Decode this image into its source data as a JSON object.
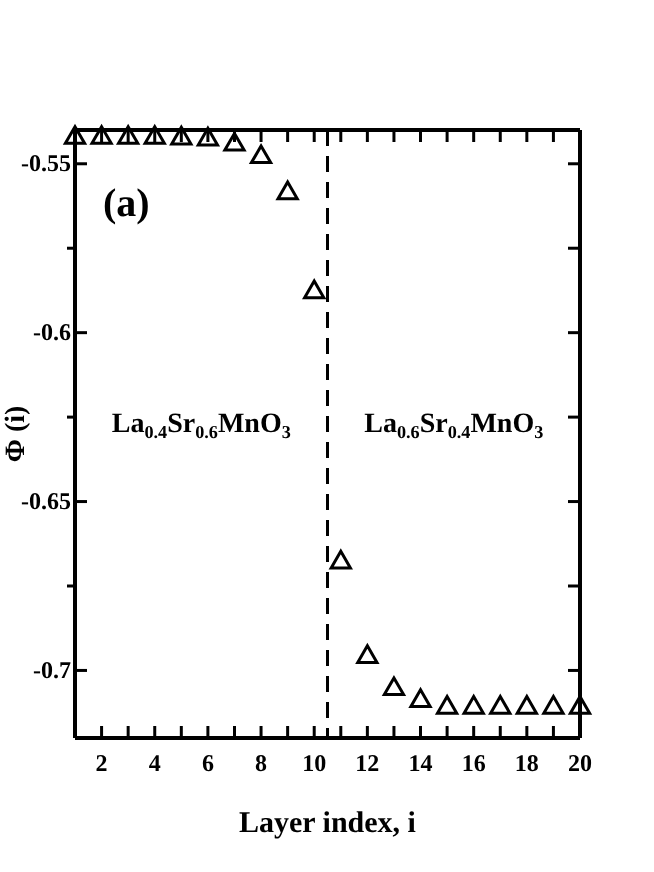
{
  "chart_data": {
    "type": "scatter",
    "xlabel": "Layer index, i",
    "ylabel": "Φ (i)",
    "x": [
      1,
      2,
      3,
      4,
      5,
      6,
      7,
      8,
      9,
      10,
      11,
      12,
      13,
      14,
      15,
      16,
      17,
      18,
      19,
      20
    ],
    "series": [
      {
        "color": "#000000",
        "values": [
          -0.5423,
          -0.5423,
          -0.5423,
          -0.5423,
          -0.5425,
          -0.5428,
          -0.5443,
          -0.548,
          -0.5587,
          -0.588,
          -0.668,
          -0.696,
          -0.7055,
          -0.709,
          -0.711,
          -0.711,
          -0.711,
          -0.711,
          -0.711,
          -0.711
        ]
      }
    ],
    "marker": "triangle",
    "xlim": [
      1,
      20
    ],
    "ylim": [
      -0.72,
      -0.54
    ],
    "xticks": [
      {
        "value": 1,
        "label": null
      },
      2,
      {
        "value": 3,
        "label": null
      },
      4,
      {
        "value": 5,
        "label": null
      },
      6,
      {
        "value": 7,
        "label": null
      },
      8,
      {
        "value": 9,
        "label": null
      },
      10,
      {
        "value": 11,
        "label": null
      },
      12,
      {
        "value": 13,
        "label": null
      },
      14,
      {
        "value": 15,
        "label": null
      },
      16,
      {
        "value": 17,
        "label": null
      },
      18,
      {
        "value": 19,
        "label": null
      },
      20
    ],
    "yticks": [
      {
        "value": -0.7,
        "label": "-0.7"
      },
      {
        "value": -0.675,
        "label": null
      },
      {
        "value": -0.65,
        "label": "-0.65"
      },
      {
        "value": -0.625,
        "label": null
      },
      {
        "value": -0.6,
        "label": "-0.6"
      },
      {
        "value": -0.575,
        "label": null
      },
      {
        "value": -0.55,
        "label": "-0.55"
      }
    ],
    "ref_lines": [
      {
        "axis": "x",
        "value": 10.5,
        "line_style": "dashed",
        "color": "#000000"
      }
    ],
    "annotations": [
      "(a)",
      "La$_{0.4}$Sr$_{0.6}$MnO$_{3}$",
      "La$_{0.6}$Sr$_{0.4}$MnO$_{3}$"
    ],
    "grid": false
  }
}
